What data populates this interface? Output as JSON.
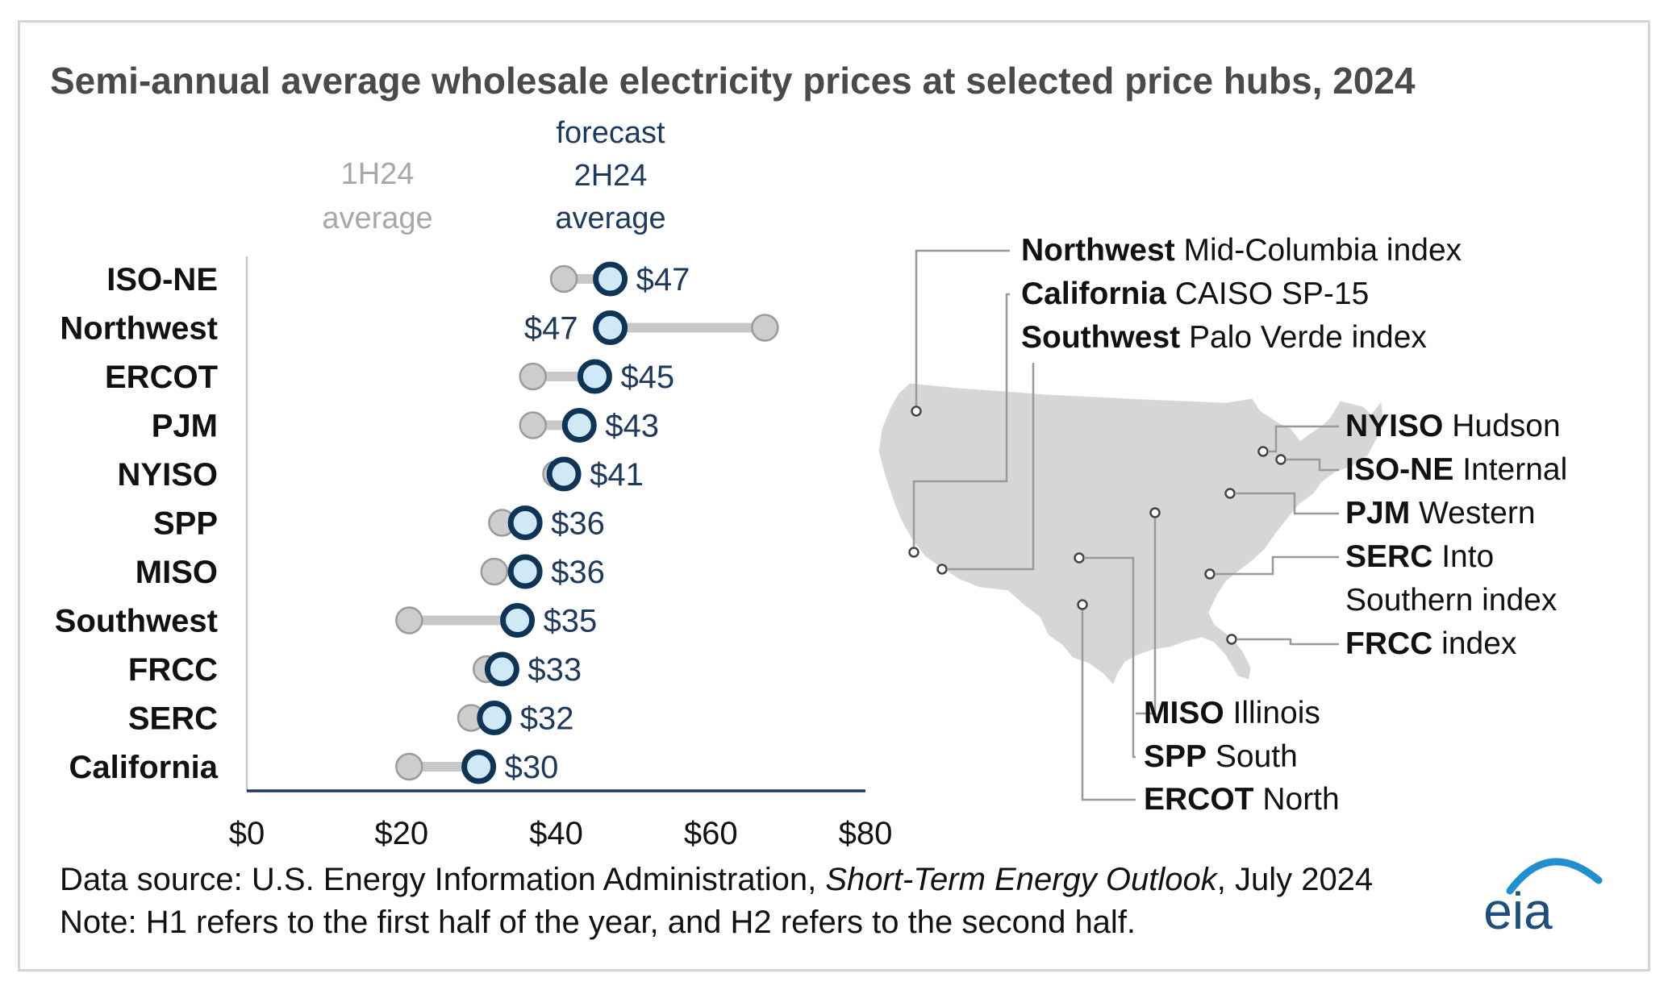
{
  "chart_data": {
    "type": "dumbbell",
    "title": "Semi-annual average wholesale electricity prices at selected price hubs, 2024",
    "series": [
      {
        "name": "1H24 average",
        "label_lines": [
          "1H24",
          "average"
        ],
        "color": "#c8c8c8"
      },
      {
        "name": "forecast 2H24 average",
        "label_lines": [
          "forecast",
          "2H24",
          "average"
        ],
        "color": "#0f3556",
        "fill": "#cfe9f7"
      }
    ],
    "categories": [
      "ISO-NE",
      "Northwest",
      "ERCOT",
      "PJM",
      "NYISO",
      "SPP",
      "MISO",
      "Southwest",
      "FRCC",
      "SERC",
      "California"
    ],
    "values_1h24": [
      41,
      67,
      37,
      37,
      40,
      33,
      32,
      21,
      31,
      29,
      21
    ],
    "values_2h24": [
      47,
      47,
      45,
      43,
      41,
      36,
      36,
      35,
      33,
      32,
      30
    ],
    "value_labels": [
      "$47",
      "$47",
      "$45",
      "$43",
      "$41",
      "$36",
      "$36",
      "$35",
      "$33",
      "$32",
      "$30"
    ],
    "label_side": [
      "right",
      "left",
      "right",
      "right",
      "right",
      "right",
      "right",
      "right",
      "right",
      "right",
      "right"
    ],
    "xlim": [
      0,
      80
    ],
    "xticks": [
      0,
      20,
      40,
      60,
      80
    ],
    "xtick_labels": [
      "$0",
      "$20",
      "$40",
      "$60",
      "$80"
    ],
    "grid": false,
    "legend": "column headers above chart"
  },
  "map": {
    "hub_labels_top": [
      {
        "bold": "Northwest",
        "text": " Mid-Columbia index"
      },
      {
        "bold": "California",
        "text": " CAISO SP-15"
      },
      {
        "bold": "Southwest",
        "text": " Palo Verde index"
      }
    ],
    "hub_labels_right": [
      {
        "bold": "NYISO",
        "text": " Hudson"
      },
      {
        "bold": "ISO-NE",
        "text": " Internal"
      },
      {
        "bold": "PJM",
        "text": " Western"
      },
      {
        "bold": "SERC",
        "text": " Into"
      },
      {
        "bold": "",
        "text": "Southern index"
      },
      {
        "bold": "FRCC",
        "text": " index"
      }
    ],
    "hub_labels_bottom": [
      {
        "bold": "MISO",
        "text": " Illinois"
      },
      {
        "bold": "SPP",
        "text": " South"
      },
      {
        "bold": "ERCOT",
        "text": " North"
      }
    ]
  },
  "footer": {
    "source_prefix": "Data source: U.S. Energy Information Administration, ",
    "source_italic": "Short-Term Energy Outlook",
    "source_suffix": ", July 2024",
    "note": "Note: H1 refers to the first half of the year, and H2 refers to the second half."
  },
  "logo": {
    "text": "eia",
    "color": "#1d4f7c",
    "arc_color": "#1f8fd0"
  }
}
